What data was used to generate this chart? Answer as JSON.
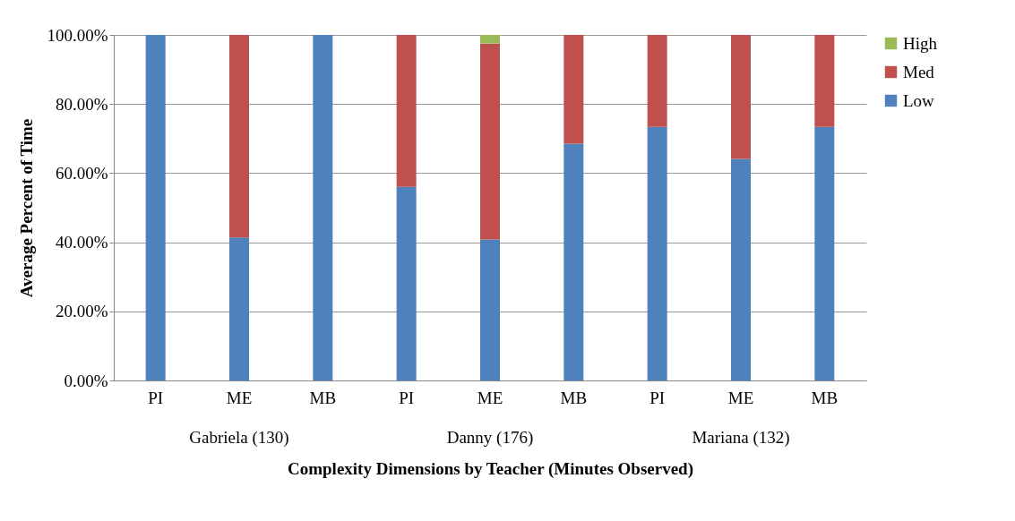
{
  "chart_data": {
    "type": "bar",
    "stacked": true,
    "xlabel": "Complexity Dimensions by Teacher (Minutes Observed)",
    "ylabel": "Average Percent of Time",
    "categories": [
      "PI",
      "ME",
      "MB",
      "PI",
      "ME",
      "MB",
      "PI",
      "ME",
      "MB"
    ],
    "series": [
      {
        "name": "Low",
        "color": "#4f81bd",
        "values": [
          100,
          41.4,
          100,
          56,
          40.8,
          68.5,
          73.4,
          64.1,
          73.4
        ]
      },
      {
        "name": "Med",
        "color": "#c0504d",
        "values": [
          0,
          58.6,
          0,
          44,
          56.7,
          31.5,
          26.6,
          35.9,
          26.6
        ]
      },
      {
        "name": "High",
        "color": "#9bbb59",
        "values": [
          0,
          0,
          0,
          0,
          2.5,
          0,
          0,
          0,
          0
        ]
      }
    ],
    "ylim": [
      0,
      100
    ],
    "yticks": [
      {
        "value": 0,
        "label": "0.00%"
      },
      {
        "value": 20,
        "label": "20.00%"
      },
      {
        "value": 40,
        "label": "40.00%"
      },
      {
        "value": 60,
        "label": "60.00%"
      },
      {
        "value": 80,
        "label": "80.00%"
      },
      {
        "value": 100,
        "label": "100.00%"
      }
    ],
    "grid": "y",
    "legend": "right",
    "annotations": [
      "Gabriela (130)",
      "Danny (176)",
      "Mariana (132)"
    ]
  }
}
